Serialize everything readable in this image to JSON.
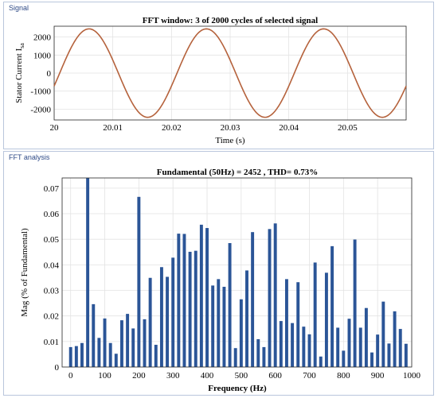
{
  "signal_panel": {
    "label": "Signal"
  },
  "fft_panel": {
    "label": "FFT analysis"
  },
  "chart_data": [
    {
      "type": "line",
      "title": "FFT window: 3 of 2000 cycles of selected signal",
      "xlabel": "Time (s)",
      "ylabel": "Stator Current I",
      "ylabel_sub": "sa",
      "xlim": [
        20,
        20.06
      ],
      "ylim": [
        -2600,
        2600
      ],
      "xticks": [
        20,
        20.01,
        20.02,
        20.03,
        20.04,
        20.05
      ],
      "xtick_labels": [
        "20",
        "20.01",
        "20.02",
        "20.03",
        "20.04",
        "20.05"
      ],
      "yticks": [
        2000,
        1000,
        0,
        -1000,
        -2000
      ],
      "ytick_labels": [
        "2000",
        "1000",
        "0",
        "-1000",
        "-2000"
      ],
      "grid": true,
      "series": [
        {
          "frequency_hz": 50,
          "amplitude": 2452,
          "phase_deg": -17,
          "color": "#b5623c"
        }
      ]
    },
    {
      "type": "bar",
      "title": "Fundamental (50Hz) = 2452 , THD= 0.73%",
      "xlabel": "Frequency  (Hz)",
      "ylabel": "Mag (% of Fundamental)",
      "xlim": [
        -25,
        1000
      ],
      "ylim": [
        0,
        0.074
      ],
      "xticks": [
        0,
        100,
        200,
        300,
        400,
        500,
        600,
        700,
        800,
        900,
        1000
      ],
      "xtick_labels": [
        "0",
        "100",
        "200",
        "300",
        "400",
        "500",
        "600",
        "700",
        "800",
        "900",
        "1000"
      ],
      "yticks": [
        0,
        0.01,
        0.02,
        0.03,
        0.04,
        0.05,
        0.06,
        0.07
      ],
      "ytick_labels": [
        "0",
        "0.01",
        "0.02",
        "0.03",
        "0.04",
        "0.05",
        "0.06",
        "0.07"
      ],
      "grid": true,
      "bar_color": "#2b5597",
      "x": [
        0,
        16.7,
        33.3,
        50,
        66.7,
        83.3,
        100,
        116.7,
        133.3,
        150,
        166.7,
        183.3,
        200,
        216.7,
        233.3,
        250,
        266.7,
        283.3,
        300,
        316.7,
        333.3,
        350,
        366.7,
        383.3,
        400,
        416.7,
        433.3,
        450,
        466.7,
        483.3,
        500,
        516.7,
        533.3,
        550,
        566.7,
        583.3,
        600,
        616.7,
        633.3,
        650,
        666.7,
        683.3,
        700,
        716.7,
        733.3,
        750,
        766.7,
        783.3,
        800,
        816.7,
        833.3,
        850,
        866.7,
        883.3,
        900,
        916.7,
        933.3,
        950,
        966.7,
        983.3
      ],
      "values": [
        0.0078,
        0.0082,
        0.0094,
        0.074,
        0.0246,
        0.0114,
        0.019,
        0.0094,
        0.0052,
        0.0183,
        0.0208,
        0.0151,
        0.0666,
        0.0187,
        0.0349,
        0.0087,
        0.0391,
        0.0353,
        0.0428,
        0.0522,
        0.0521,
        0.0451,
        0.0455,
        0.0557,
        0.0544,
        0.0319,
        0.0344,
        0.0314,
        0.0485,
        0.0074,
        0.0265,
        0.0378,
        0.0528,
        0.0109,
        0.0078,
        0.054,
        0.0562,
        0.018,
        0.0344,
        0.0172,
        0.0332,
        0.0158,
        0.0128,
        0.0409,
        0.0041,
        0.0369,
        0.0473,
        0.0154,
        0.0064,
        0.0189,
        0.0499,
        0.0154,
        0.0231,
        0.0057,
        0.0127,
        0.0256,
        0.0092,
        0.0218,
        0.0149,
        0.0091
      ]
    }
  ]
}
